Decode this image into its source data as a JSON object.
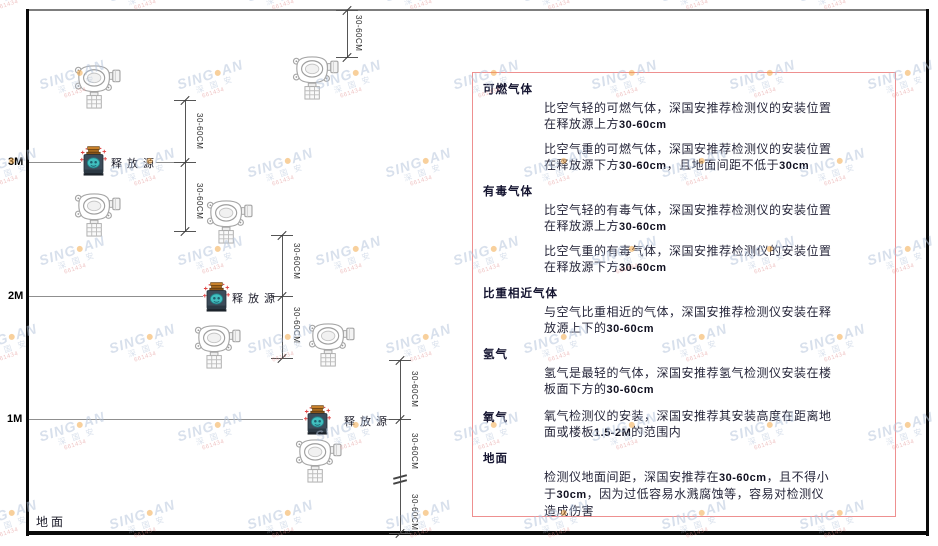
{
  "diagram": {
    "dim_label": "30-60CM",
    "release_source_label": "释放源",
    "ground_label": "地面",
    "axis": {
      "m3": "3M",
      "m2": "2M",
      "m1": "1M"
    }
  },
  "panel": {
    "border_color": "#ee9090",
    "sections": [
      {
        "heading": "可燃气体",
        "paragraphs": [
          "比空气轻的可燃气体，深国安推荐检测仪的安装位置在释放源上方30-60cm",
          "比空气重的可燃气体，深国安推荐检测仪的安装位置在释放源下方30-60cm，且地面间距不低于30cm"
        ]
      },
      {
        "heading": "有毒气体",
        "paragraphs": [
          "比空气轻的有毒气体，深国安推荐检测仪的安装位置在释放源上方30-60cm",
          "比空气重的有毒气体，深国安推荐检测仪的安装位置在释放源下方30-60cm"
        ]
      },
      {
        "heading": "比重相近气体",
        "paragraphs": [
          "与空气比重相近的气体，深国安推荐检测仪安装在释放源上下的30-60cm"
        ]
      },
      {
        "heading": "氢气",
        "paragraphs": [
          "氢气是最轻的气体，深国安推荐氢气检测仪安装在楼板面下方的30-60cm"
        ]
      },
      {
        "heading": "氧气",
        "inline": true,
        "paragraphs": [
          "氧气检测仪的安装，深国安推荐其安装高度在距离地面或楼板1.5-2M的范围内"
        ]
      },
      {
        "heading": "地面",
        "paragraphs": [
          "检测仪地面间距，深国安推荐在30-60cm，且不得小于30cm，因为过低容易水溅腐蚀等，容易对检测仪造成伤害"
        ]
      }
    ]
  },
  "watermark": {
    "brand_left": "SING",
    "brand_right": "AN",
    "cjk": "深 国 安",
    "code": "661434"
  }
}
